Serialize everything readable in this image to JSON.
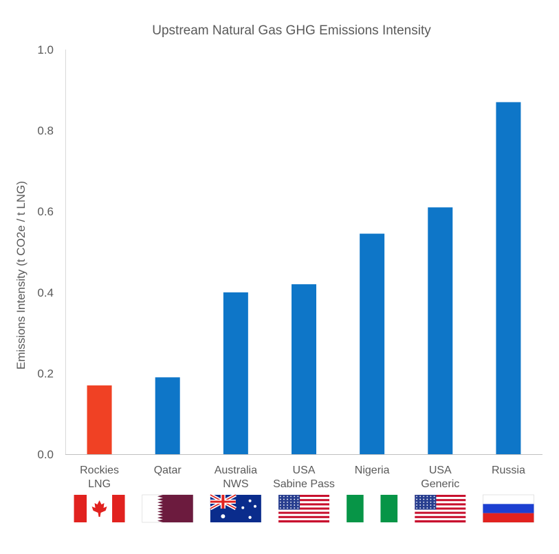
{
  "chart_data": {
    "type": "bar",
    "title": "Upstream Natural Gas GHG Emissions Intensity",
    "ylabel": "Emissions Intensity (t CO2e / t LNG)",
    "xlabel": "",
    "ylim": [
      0,
      1.0
    ],
    "yticks": [
      "0.0",
      "0.2",
      "0.4",
      "0.6",
      "0.8",
      "1.0"
    ],
    "grid": false,
    "categories": [
      {
        "line1": "Rockies",
        "line2": "LNG",
        "value": 0.17,
        "color": "#F04124",
        "flag": "canada-flag"
      },
      {
        "line1": "Qatar",
        "line2": "",
        "value": 0.19,
        "color": "#0E76C8",
        "flag": "qatar-flag"
      },
      {
        "line1": "Australia",
        "line2": "NWS",
        "value": 0.4,
        "color": "#0E76C8",
        "flag": "australia-flag"
      },
      {
        "line1": "USA",
        "line2": "Sabine Pass",
        "value": 0.42,
        "color": "#0E76C8",
        "flag": "usa-flag"
      },
      {
        "line1": "Nigeria",
        "line2": "",
        "value": 0.545,
        "color": "#0E76C8",
        "flag": "nigeria-flag"
      },
      {
        "line1": "USA",
        "line2": "Generic",
        "value": 0.61,
        "color": "#0E76C8",
        "flag": "usa-flag"
      },
      {
        "line1": "Russia",
        "line2": "",
        "value": 0.87,
        "color": "#0E76C8",
        "flag": "russia-flag"
      }
    ]
  }
}
